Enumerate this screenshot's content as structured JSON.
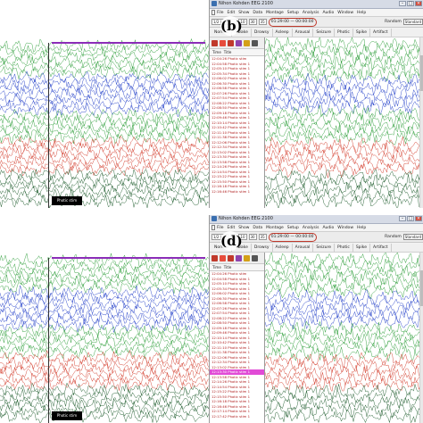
{
  "panels": [
    {
      "id": "b",
      "panel_label": "(b)",
      "window_title": "Nihon Kohden EEG 2100",
      "menu": [
        "File",
        "Edit",
        "Show",
        "Data",
        "Montage",
        "Setup",
        "Analysis",
        "Audio",
        "Window",
        "Help"
      ],
      "toolbar": {
        "time_field": "1/2 | 00",
        "sens_field": "10",
        "speed_field": "30",
        "filter_field": "35",
        "highlight_field": "01:29:00 — 00:00:00",
        "random_label": "Random",
        "random_select": "Standard"
      },
      "montage_tabs": [
        "Normal",
        "Awake",
        "Drowsy",
        "Asleep",
        "Arousal",
        "Seizure",
        "Photic",
        "Spike",
        "Artifact"
      ],
      "side_columns": [
        "Time",
        "Title"
      ],
      "side_rows": [
        {
          "time": "12:04:26",
          "title": "Photic stim"
        },
        {
          "time": "12:04:58",
          "title": "Photic stim 1"
        },
        {
          "time": "12:05:10",
          "title": "Photic stim 1"
        },
        {
          "time": "12:05:34",
          "title": "Photic stim 1"
        },
        {
          "time": "12:06:02",
          "title": "Photic stim 1"
        },
        {
          "time": "12:06:30",
          "title": "Photic stim 1"
        },
        {
          "time": "12:06:58",
          "title": "Photic stim 1"
        },
        {
          "time": "12:07:26",
          "title": "Photic stim 1"
        },
        {
          "time": "12:07:54",
          "title": "Photic stim 1"
        },
        {
          "time": "12:08:22",
          "title": "Photic stim 1"
        },
        {
          "time": "12:08:50",
          "title": "Photic stim 1"
        },
        {
          "time": "12:09:18",
          "title": "Photic stim 1"
        },
        {
          "time": "12:09:46",
          "title": "Photic stim 1"
        },
        {
          "time": "12:10:14",
          "title": "Photic stim 1"
        },
        {
          "time": "12:10:42",
          "title": "Photic stim 1"
        },
        {
          "time": "12:11:10",
          "title": "Photic stim 1"
        },
        {
          "time": "12:11:38",
          "title": "Photic stim 1"
        },
        {
          "time": "12:12:06",
          "title": "Photic stim 1"
        },
        {
          "time": "12:12:34",
          "title": "Photic stim 1"
        },
        {
          "time": "12:13:02",
          "title": "Photic stim 1"
        },
        {
          "time": "12:13:30",
          "title": "Photic stim 1"
        },
        {
          "time": "12:13:58",
          "title": "Photic stim 1"
        },
        {
          "time": "12:14:26",
          "title": "Photic stim 1"
        },
        {
          "time": "12:14:54",
          "title": "Photic stim 1"
        },
        {
          "time": "12:15:22",
          "title": "Photic stim 1"
        },
        {
          "time": "12:15:50",
          "title": "Photic stim 1"
        },
        {
          "time": "12:16:18",
          "title": "Photic stim 1"
        },
        {
          "time": "12:16:46",
          "title": "Photic stim 1"
        }
      ],
      "selected_row": -1,
      "event_label": "Photic stim"
    },
    {
      "id": "d",
      "panel_label": "(d)",
      "window_title": "Nihon Kohden EEG 2100",
      "menu": [
        "File",
        "Edit",
        "Show",
        "Data",
        "Montage",
        "Setup",
        "Analysis",
        "Audio",
        "Window",
        "Help"
      ],
      "toolbar": {
        "time_field": "1/2 | 00",
        "sens_field": "10",
        "speed_field": "30",
        "filter_field": "35",
        "highlight_field": "01:29:00 — 00:00:00",
        "random_label": "Random",
        "random_select": "Standard"
      },
      "montage_tabs": [
        "Normal",
        "Awake",
        "Drowsy",
        "Asleep",
        "Arousal",
        "Seizure",
        "Photic",
        "Spike",
        "Artifact"
      ],
      "side_columns": [
        "Time",
        "Title"
      ],
      "side_rows": [
        {
          "time": "12:04:26",
          "title": "Photic stim"
        },
        {
          "time": "12:04:58",
          "title": "Photic stim 1"
        },
        {
          "time": "12:05:10",
          "title": "Photic stim 1"
        },
        {
          "time": "12:05:34",
          "title": "Photic stim 1"
        },
        {
          "time": "12:06:02",
          "title": "Photic stim 1"
        },
        {
          "time": "12:06:30",
          "title": "Photic stim 1"
        },
        {
          "time": "12:06:58",
          "title": "Photic stim 1"
        },
        {
          "time": "12:07:26",
          "title": "Photic stim 1"
        },
        {
          "time": "12:07:54",
          "title": "Photic stim 1"
        },
        {
          "time": "12:08:22",
          "title": "Photic stim 1"
        },
        {
          "time": "12:08:50",
          "title": "Photic stim 1"
        },
        {
          "time": "12:09:18",
          "title": "Photic stim 1"
        },
        {
          "time": "12:09:46",
          "title": "Photic stim 1"
        },
        {
          "time": "12:10:14",
          "title": "Photic stim 1"
        },
        {
          "time": "12:10:42",
          "title": "Photic stim 1"
        },
        {
          "time": "12:11:10",
          "title": "Photic stim 1"
        },
        {
          "time": "12:11:38",
          "title": "Photic stim 1"
        },
        {
          "time": "12:12:06",
          "title": "Photic stim 1"
        },
        {
          "time": "12:12:34",
          "title": "Photic stim 1"
        },
        {
          "time": "12:13:02",
          "title": "Photic stim 1"
        },
        {
          "time": "12:13:30",
          "title": "Photic stim 1"
        },
        {
          "time": "12:13:58",
          "title": "Photic stim 1"
        },
        {
          "time": "12:14:26",
          "title": "Photic stim 1"
        },
        {
          "time": "12:14:54",
          "title": "Photic stim 1"
        },
        {
          "time": "12:15:22",
          "title": "Photic stim 1"
        },
        {
          "time": "12:15:50",
          "title": "Photic stim 1"
        },
        {
          "time": "12:16:18",
          "title": "Photic stim 1"
        },
        {
          "time": "12:16:46",
          "title": "Photic stim 1"
        },
        {
          "time": "12:17:14",
          "title": "Photic stim 1"
        },
        {
          "time": "12:17:42",
          "title": "Photic stim 1"
        }
      ],
      "selected_row": 20,
      "event_label": "Photic stim"
    }
  ],
  "colors": {
    "green_trace": "#2e9e3a",
    "blue_trace": "#2340c8",
    "red_trace": "#d23b2a",
    "dark_trace": "#1c5a2a",
    "selection": "#e14bd6",
    "event_bar": "#8b2db8"
  },
  "icons": [
    "app-icon",
    "document-icon",
    "minimize-icon",
    "maximize-icon",
    "close-icon"
  ]
}
